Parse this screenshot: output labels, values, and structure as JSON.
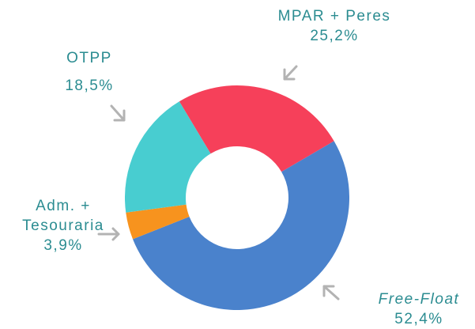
{
  "chart_data": {
    "type": "pie",
    "categories": [
      "MPAR + Peres",
      "Free-Float",
      "Adm. + Tesouraria",
      "OTPP"
    ],
    "values": [
      25.2,
      52.4,
      3.9,
      18.5
    ],
    "value_labels": [
      "25,2%",
      "52,4%",
      "3,9%",
      "18,5%"
    ],
    "colors": [
      "#f6405a",
      "#4a82cc",
      "#f7931e",
      "#48cdd0"
    ],
    "donut": true
  }
}
